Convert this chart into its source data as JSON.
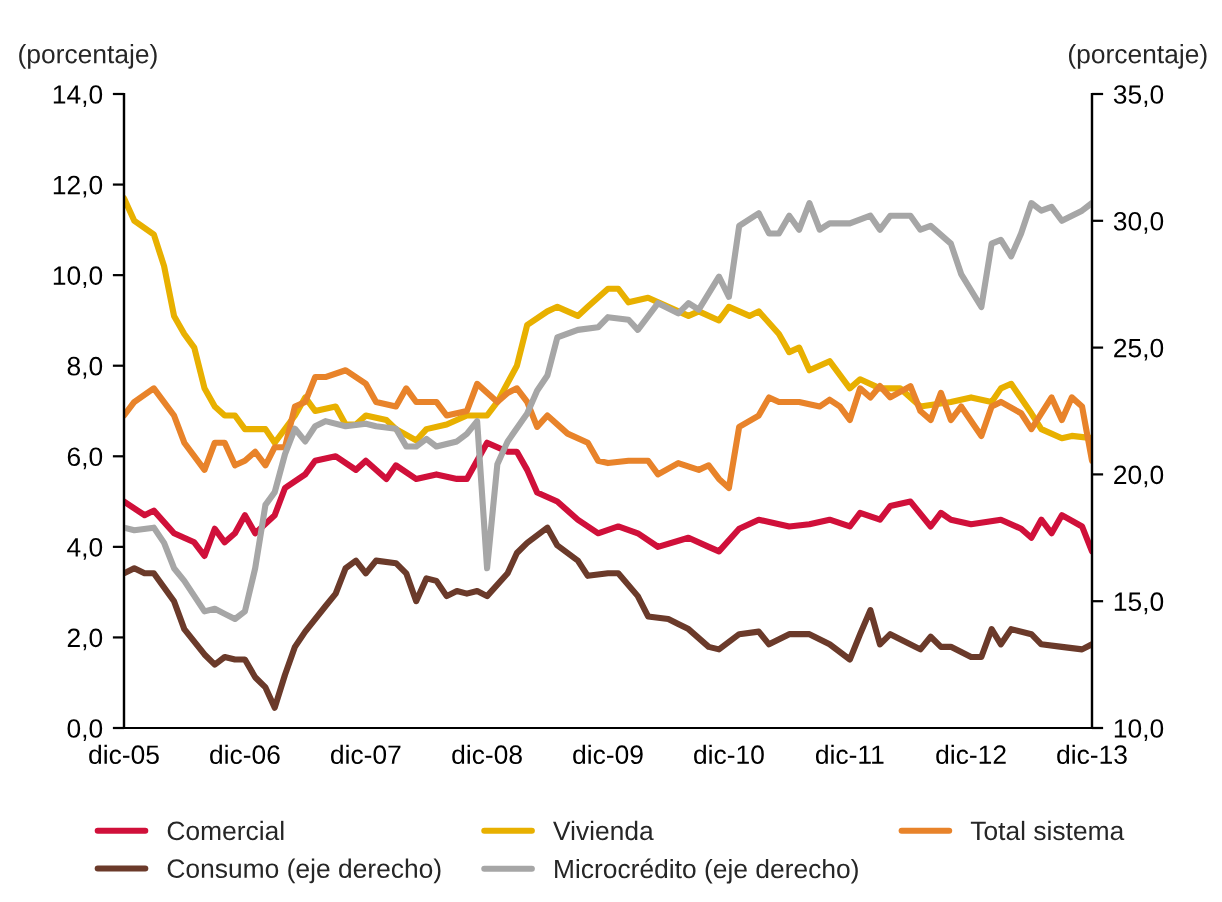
{
  "chart_data": {
    "type": "line",
    "ylabel": "(porcentaje)",
    "y2label": "(porcentaje)",
    "xlim": [
      "2005-12-01",
      "2013-12-01"
    ],
    "xticks": [
      {
        "value": "2005-12-01",
        "label": "dic-05"
      },
      {
        "value": "2006-12-01",
        "label": "dic-06"
      },
      {
        "value": "2007-12-01",
        "label": "dic-07"
      },
      {
        "value": "2008-12-01",
        "label": "dic-08"
      },
      {
        "value": "2009-12-01",
        "label": "dic-09"
      },
      {
        "value": "2010-12-01",
        "label": "dic-10"
      },
      {
        "value": "2011-12-01",
        "label": "dic-11"
      },
      {
        "value": "2012-12-01",
        "label": "dic-12"
      },
      {
        "value": "2013-12-01",
        "label": "dic-13"
      }
    ],
    "ylim": [
      0,
      14
    ],
    "yticks": [
      {
        "value": 0,
        "label": "0,0"
      },
      {
        "value": 2,
        "label": "2,0"
      },
      {
        "value": 4,
        "label": "4,0"
      },
      {
        "value": 6,
        "label": "6,0"
      },
      {
        "value": 8,
        "label": "8,0"
      },
      {
        "value": 10,
        "label": "10,0"
      },
      {
        "value": 12,
        "label": "12,0"
      },
      {
        "value": 14,
        "label": "14,0"
      }
    ],
    "y2lim": [
      10,
      35
    ],
    "y2ticks": [
      {
        "value": 10,
        "label": "10,0"
      },
      {
        "value": 15,
        "label": "15,0"
      },
      {
        "value": 20,
        "label": "20,0"
      },
      {
        "value": 25,
        "label": "25,0"
      },
      {
        "value": 30,
        "label": "30,0"
      },
      {
        "value": 35,
        "label": "35,0"
      }
    ],
    "legend": "bottom",
    "series": [
      {
        "name": "Comercial",
        "color": "#d0103a",
        "x": [
          "2005-12",
          "2006-02",
          "2006-03",
          "2006-05",
          "2006-07",
          "2006-08",
          "2006-09",
          "2006-10",
          "2006-11",
          "2006-12",
          "2007-01",
          "2007-03",
          "2007-04",
          "2007-06",
          "2007-07",
          "2007-09",
          "2007-11",
          "2007-12",
          "2008-02",
          "2008-03",
          "2008-05",
          "2008-07",
          "2008-09",
          "2008-10",
          "2008-12",
          "2009-02",
          "2009-03",
          "2009-04",
          "2009-05",
          "2009-07",
          "2009-09",
          "2009-11",
          "2010-01",
          "2010-03",
          "2010-05",
          "2010-08",
          "2010-10",
          "2010-11",
          "2011-01",
          "2011-03",
          "2011-06",
          "2011-08",
          "2011-10",
          "2011-12",
          "2012-01",
          "2012-03",
          "2012-04",
          "2012-06",
          "2012-08",
          "2012-09",
          "2012-10",
          "2012-12",
          "2013-03",
          "2013-05",
          "2013-06",
          "2013-07",
          "2013-08",
          "2013-09",
          "2013-11",
          "2013-12"
        ],
        "values": [
          5.0,
          4.7,
          4.8,
          4.3,
          4.1,
          3.8,
          4.4,
          4.1,
          4.3,
          4.7,
          4.3,
          4.7,
          5.3,
          5.6,
          5.9,
          6.0,
          5.7,
          5.9,
          5.5,
          5.8,
          5.5,
          5.6,
          5.5,
          5.5,
          6.3,
          6.1,
          6.1,
          5.7,
          5.2,
          5.0,
          4.6,
          4.3,
          4.45,
          4.3,
          4.0,
          4.2,
          4.0,
          3.9,
          4.4,
          4.6,
          4.45,
          4.5,
          4.6,
          4.45,
          4.75,
          4.6,
          4.9,
          5.0,
          4.45,
          4.75,
          4.6,
          4.5,
          4.6,
          4.4,
          4.2,
          4.6,
          4.3,
          4.7,
          4.45,
          3.9
        ]
      },
      {
        "name": "Vivienda",
        "color": "#e8b000",
        "x": [
          "2005-12",
          "2006-01",
          "2006-03",
          "2006-04",
          "2006-05",
          "2006-06",
          "2006-07",
          "2006-08",
          "2006-09",
          "2006-10",
          "2006-11",
          "2006-12",
          "2007-02",
          "2007-03",
          "2007-05",
          "2007-06",
          "2007-07",
          "2007-09",
          "2007-10",
          "2007-11",
          "2007-12",
          "2008-02",
          "2008-03",
          "2008-05",
          "2008-06",
          "2008-08",
          "2008-10",
          "2008-12",
          "2009-01",
          "2009-03",
          "2009-04",
          "2009-06",
          "2009-07",
          "2009-09",
          "2009-10",
          "2009-12",
          "2010-01",
          "2010-02",
          "2010-04",
          "2010-06",
          "2010-08",
          "2010-09",
          "2010-11",
          "2010-12",
          "2011-02",
          "2011-03",
          "2011-05",
          "2011-06",
          "2011-07",
          "2011-08",
          "2011-10",
          "2011-12",
          "2012-01",
          "2012-03",
          "2012-05",
          "2012-07",
          "2012-10",
          "2012-12",
          "2013-02",
          "2013-03",
          "2013-04",
          "2013-06",
          "2013-07",
          "2013-09",
          "2013-10",
          "2013-12"
        ],
        "values": [
          11.7,
          11.2,
          10.9,
          10.2,
          9.1,
          8.7,
          8.4,
          7.5,
          7.1,
          6.9,
          6.9,
          6.6,
          6.6,
          6.3,
          6.9,
          7.3,
          7.0,
          7.1,
          6.7,
          6.7,
          6.9,
          6.8,
          6.6,
          6.35,
          6.6,
          6.7,
          6.9,
          6.9,
          7.2,
          8.0,
          8.9,
          9.2,
          9.3,
          9.1,
          9.3,
          9.7,
          9.7,
          9.4,
          9.5,
          9.3,
          9.1,
          9.2,
          9.0,
          9.3,
          9.1,
          9.2,
          8.7,
          8.3,
          8.4,
          7.9,
          8.1,
          7.5,
          7.7,
          7.5,
          7.5,
          7.1,
          7.2,
          7.3,
          7.2,
          7.5,
          7.6,
          6.95,
          6.6,
          6.4,
          6.45,
          6.4
        ]
      },
      {
        "name": "Total sistema",
        "color": "#e8832a",
        "x": [
          "2005-12",
          "2006-01",
          "2006-03",
          "2006-05",
          "2006-06",
          "2006-08",
          "2006-09",
          "2006-10",
          "2006-11",
          "2006-12",
          "2007-01",
          "2007-02",
          "2007-03",
          "2007-04",
          "2007-05",
          "2007-06",
          "2007-07",
          "2007-08",
          "2007-10",
          "2007-12",
          "2008-01",
          "2008-03",
          "2008-04",
          "2008-05",
          "2008-07",
          "2008-08",
          "2008-10",
          "2008-11",
          "2009-01",
          "2009-02",
          "2009-03",
          "2009-04",
          "2009-05",
          "2009-06",
          "2009-08",
          "2009-10",
          "2009-11",
          "2009-12",
          "2010-02",
          "2010-04",
          "2010-05",
          "2010-07",
          "2010-09",
          "2010-10",
          "2010-11",
          "2010-12",
          "2011-01",
          "2011-03",
          "2011-04",
          "2011-05",
          "2011-07",
          "2011-09",
          "2011-10",
          "2011-11",
          "2011-12",
          "2012-01",
          "2012-02",
          "2012-03",
          "2012-04",
          "2012-06",
          "2012-07",
          "2012-08",
          "2012-09",
          "2012-10",
          "2012-11",
          "2013-01",
          "2013-02",
          "2013-03",
          "2013-05",
          "2013-06",
          "2013-08",
          "2013-09",
          "2013-10",
          "2013-11",
          "2013-12"
        ],
        "values": [
          6.9,
          7.2,
          7.5,
          6.9,
          6.3,
          5.7,
          6.3,
          6.3,
          5.8,
          5.9,
          6.1,
          5.8,
          6.2,
          6.2,
          7.1,
          7.2,
          7.75,
          7.75,
          7.9,
          7.6,
          7.2,
          7.1,
          7.5,
          7.2,
          7.2,
          6.9,
          7.0,
          7.6,
          7.2,
          7.4,
          7.5,
          7.2,
          6.65,
          6.9,
          6.5,
          6.3,
          5.9,
          5.85,
          5.9,
          5.9,
          5.6,
          5.85,
          5.7,
          5.8,
          5.5,
          5.3,
          6.65,
          6.9,
          7.3,
          7.2,
          7.2,
          7.1,
          7.25,
          7.1,
          6.8,
          7.5,
          7.3,
          7.55,
          7.3,
          7.55,
          7.0,
          6.8,
          7.4,
          6.8,
          7.1,
          6.45,
          7.1,
          7.2,
          6.95,
          6.6,
          7.3,
          6.8,
          7.3,
          7.1,
          5.9
        ]
      },
      {
        "name": "Consumo (eje derecho)",
        "color": "#6b3a2a",
        "axis": "y2",
        "x": [
          "2005-12",
          "2006-01",
          "2006-02",
          "2006-03",
          "2006-05",
          "2006-06",
          "2006-08",
          "2006-09",
          "2006-10",
          "2006-11",
          "2006-12",
          "2007-01",
          "2007-02",
          "2007-03",
          "2007-04",
          "2007-05",
          "2007-06",
          "2007-08",
          "2007-09",
          "2007-10",
          "2007-11",
          "2007-12",
          "2008-01",
          "2008-03",
          "2008-04",
          "2008-05",
          "2008-06",
          "2008-07",
          "2008-08",
          "2008-09",
          "2008-10",
          "2008-11",
          "2008-12",
          "2009-02",
          "2009-03",
          "2009-04",
          "2009-06",
          "2009-07",
          "2009-09",
          "2009-10",
          "2009-12",
          "2010-01",
          "2010-03",
          "2010-04",
          "2010-06",
          "2010-07",
          "2010-08",
          "2010-10",
          "2010-11",
          "2011-01",
          "2011-03",
          "2011-04",
          "2011-06",
          "2011-08",
          "2011-10",
          "2011-12",
          "2012-01",
          "2012-02",
          "2012-03",
          "2012-04",
          "2012-07",
          "2012-08",
          "2012-09",
          "2012-10",
          "2012-12",
          "2013-01",
          "2013-02",
          "2013-03",
          "2013-04",
          "2013-06",
          "2013-07",
          "2013-09",
          "2013-11",
          "2013-12"
        ],
        "values": [
          16.1,
          16.3,
          16.1,
          16.1,
          15.0,
          13.9,
          12.9,
          12.5,
          12.8,
          12.7,
          12.7,
          12.0,
          11.6,
          10.8,
          12.1,
          13.2,
          13.8,
          14.8,
          15.3,
          16.3,
          16.6,
          16.1,
          16.6,
          16.5,
          16.1,
          15.0,
          15.9,
          15.8,
          15.2,
          15.4,
          15.3,
          15.4,
          15.2,
          16.1,
          16.9,
          17.3,
          17.9,
          17.2,
          16.6,
          16.0,
          16.1,
          16.1,
          15.2,
          14.4,
          14.3,
          14.1,
          13.9,
          13.2,
          13.1,
          13.7,
          13.8,
          13.3,
          13.7,
          13.7,
          13.3,
          12.7,
          13.7,
          14.65,
          13.3,
          13.7,
          13.1,
          13.6,
          13.2,
          13.2,
          12.8,
          12.8,
          13.9,
          13.3,
          13.9,
          13.7,
          13.3,
          13.2,
          13.1,
          13.3
        ]
      },
      {
        "name": "Microcrédito (eje derecho)",
        "color": "#a6a6a6",
        "axis": "y2",
        "x": [
          "2005-12",
          "2006-01",
          "2006-03",
          "2006-04",
          "2006-05",
          "2006-06",
          "2006-08",
          "2006-09",
          "2006-10",
          "2006-11",
          "2006-12",
          "2007-01",
          "2007-02",
          "2007-03",
          "2007-04",
          "2007-05",
          "2007-06",
          "2007-07",
          "2007-08",
          "2007-10",
          "2007-12",
          "2008-01",
          "2008-03",
          "2008-04",
          "2008-05",
          "2008-06",
          "2008-07",
          "2008-09",
          "2008-10",
          "2008-11",
          "2008-12",
          "2009-01",
          "2009-02",
          "2009-04",
          "2009-05",
          "2009-06",
          "2009-07",
          "2009-09",
          "2009-11",
          "2009-12",
          "2010-02",
          "2010-03",
          "2010-05",
          "2010-07",
          "2010-08",
          "2010-09",
          "2010-11",
          "2010-12",
          "2011-01",
          "2011-03",
          "2011-04",
          "2011-05",
          "2011-06",
          "2011-07",
          "2011-08",
          "2011-09",
          "2011-10",
          "2011-12",
          "2012-02",
          "2012-03",
          "2012-04",
          "2012-06",
          "2012-07",
          "2012-08",
          "2012-10",
          "2012-11",
          "2013-01",
          "2013-02",
          "2013-03",
          "2013-04",
          "2013-05",
          "2013-06",
          "2013-07",
          "2013-08",
          "2013-09",
          "2013-11",
          "2013-12"
        ],
        "values": [
          17.9,
          17.8,
          17.9,
          17.3,
          16.3,
          15.8,
          14.6,
          14.7,
          14.5,
          14.3,
          14.6,
          16.3,
          18.8,
          19.3,
          20.8,
          21.8,
          21.3,
          21.9,
          22.1,
          21.9,
          22.0,
          21.9,
          21.8,
          21.1,
          21.1,
          21.4,
          21.1,
          21.3,
          21.6,
          22.1,
          16.3,
          20.4,
          21.3,
          22.4,
          23.3,
          23.9,
          25.4,
          25.7,
          25.8,
          26.2,
          26.1,
          25.7,
          26.75,
          26.35,
          26.75,
          26.5,
          27.8,
          27.0,
          29.8,
          30.3,
          29.5,
          29.5,
          30.2,
          29.65,
          30.7,
          29.65,
          29.9,
          29.9,
          30.2,
          29.65,
          30.2,
          30.2,
          29.65,
          29.8,
          29.1,
          27.9,
          26.6,
          29.1,
          29.25,
          28.6,
          29.5,
          30.7,
          30.4,
          30.55,
          30.0,
          30.4,
          30.7
        ]
      }
    ]
  }
}
